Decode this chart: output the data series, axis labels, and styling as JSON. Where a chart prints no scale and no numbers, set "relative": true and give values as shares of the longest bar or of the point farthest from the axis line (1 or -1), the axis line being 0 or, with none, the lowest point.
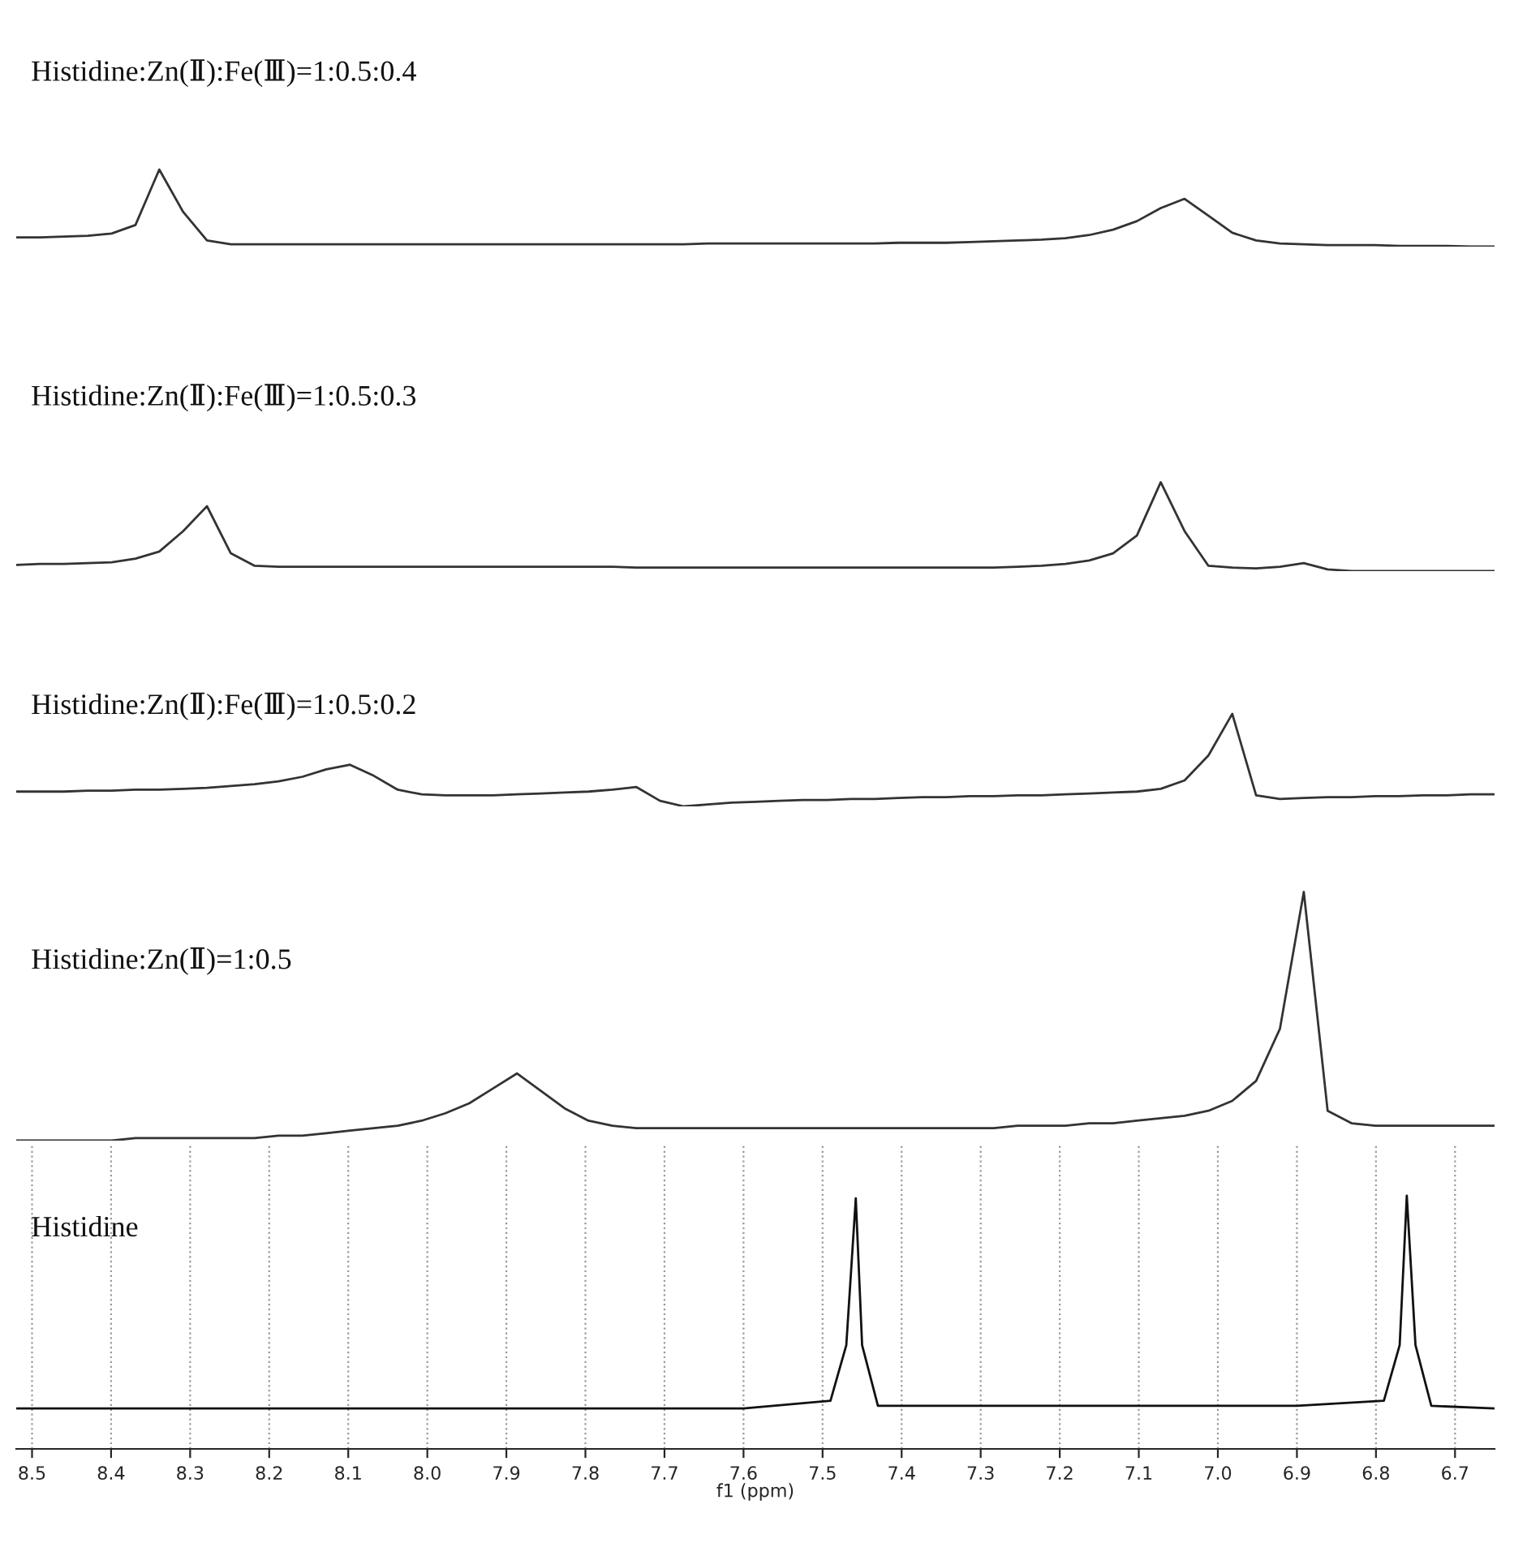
{
  "chart_data": [
    {
      "type": "line",
      "relative": true,
      "annotations": [
        "Histidine:Zn(Ⅱ):Fe(Ⅲ)=1:0.5:0.4"
      ],
      "tick_labels": false,
      "categories": [
        null,
        null,
        null,
        null,
        null,
        null,
        null,
        null,
        null,
        null,
        null,
        null,
        null,
        null,
        null,
        null,
        null,
        null,
        null,
        null,
        null,
        null,
        null,
        null,
        null,
        null,
        null,
        null,
        null,
        null,
        null,
        null,
        null,
        null,
        null,
        null,
        null,
        null,
        null,
        null,
        null,
        null,
        null,
        null,
        null,
        null,
        null,
        null,
        null,
        null,
        null,
        null,
        null,
        null,
        null,
        null,
        null,
        null,
        null,
        null,
        null,
        null,
        null
      ],
      "series": [
        {
          "color": "#333333",
          "values": [
            0.12,
            0.12,
            0.13,
            0.14,
            0.17,
            0.28,
            1.0,
            0.45,
            0.08,
            0.03,
            0.03,
            0.03,
            0.03,
            0.03,
            0.03,
            0.03,
            0.03,
            0.03,
            0.03,
            0.03,
            0.03,
            0.03,
            0.03,
            0.03,
            0.03,
            0.03,
            0.03,
            0.03,
            0.03,
            0.04,
            0.04,
            0.04,
            0.04,
            0.04,
            0.04,
            0.04,
            0.04,
            0.05,
            0.05,
            0.05,
            0.06,
            0.07,
            0.08,
            0.09,
            0.11,
            0.15,
            0.22,
            0.33,
            0.5,
            0.62,
            0.4,
            0.18,
            0.08,
            0.04,
            0.03,
            0.02,
            0.02,
            0.02,
            0.01,
            0.01,
            0.01,
            0.0,
            0.0
          ]
        }
      ]
    },
    {
      "type": "line",
      "relative": true,
      "annotations": [
        "Histidine:Zn(Ⅱ):Fe(Ⅲ)=1:0.5:0.3"
      ],
      "tick_labels": false,
      "categories": [
        null,
        null,
        null,
        null,
        null,
        null,
        null,
        null,
        null,
        null,
        null,
        null,
        null,
        null,
        null,
        null,
        null,
        null,
        null,
        null,
        null,
        null,
        null,
        null,
        null,
        null,
        null,
        null,
        null,
        null,
        null,
        null,
        null,
        null,
        null,
        null,
        null,
        null,
        null,
        null,
        null,
        null,
        null,
        null,
        null,
        null,
        null,
        null,
        null,
        null,
        null,
        null,
        null,
        null,
        null,
        null,
        null,
        null,
        null,
        null,
        null,
        null,
        null
      ],
      "series": [
        {
          "color": "#333333",
          "values": [
            0.07,
            0.08,
            0.08,
            0.09,
            0.1,
            0.14,
            0.22,
            0.45,
            0.73,
            0.2,
            0.06,
            0.05,
            0.05,
            0.05,
            0.05,
            0.05,
            0.05,
            0.05,
            0.05,
            0.05,
            0.05,
            0.05,
            0.05,
            0.05,
            0.05,
            0.05,
            0.04,
            0.04,
            0.04,
            0.04,
            0.04,
            0.04,
            0.04,
            0.04,
            0.04,
            0.04,
            0.04,
            0.04,
            0.04,
            0.04,
            0.04,
            0.04,
            0.05,
            0.06,
            0.08,
            0.12,
            0.2,
            0.4,
            1.0,
            0.45,
            0.06,
            0.04,
            0.03,
            0.05,
            0.09,
            0.02,
            0.0,
            0.0,
            0.0,
            0.0,
            0.0,
            0.0,
            0.0
          ]
        }
      ]
    },
    {
      "type": "line",
      "relative": true,
      "annotations": [
        "Histidine:Zn(Ⅱ):Fe(Ⅲ)=1:0.5:0.2"
      ],
      "tick_labels": false,
      "categories": [
        null,
        null,
        null,
        null,
        null,
        null,
        null,
        null,
        null,
        null,
        null,
        null,
        null,
        null,
        null,
        null,
        null,
        null,
        null,
        null,
        null,
        null,
        null,
        null,
        null,
        null,
        null,
        null,
        null,
        null,
        null,
        null,
        null,
        null,
        null,
        null,
        null,
        null,
        null,
        null,
        null,
        null,
        null,
        null,
        null,
        null,
        null,
        null,
        null,
        null,
        null,
        null,
        null,
        null,
        null,
        null,
        null,
        null,
        null,
        null,
        null,
        null,
        null
      ],
      "series": [
        {
          "color": "#333333",
          "values": [
            0.16,
            0.16,
            0.16,
            0.17,
            0.17,
            0.18,
            0.18,
            0.19,
            0.2,
            0.22,
            0.24,
            0.27,
            0.32,
            0.4,
            0.45,
            0.33,
            0.18,
            0.13,
            0.12,
            0.12,
            0.12,
            0.13,
            0.14,
            0.15,
            0.16,
            0.18,
            0.21,
            0.06,
            0.0,
            0.02,
            0.04,
            0.05,
            0.06,
            0.07,
            0.07,
            0.08,
            0.08,
            0.09,
            0.1,
            0.1,
            0.11,
            0.11,
            0.12,
            0.12,
            0.13,
            0.14,
            0.15,
            0.16,
            0.19,
            0.28,
            0.55,
            1.0,
            0.12,
            0.08,
            0.09,
            0.1,
            0.1,
            0.11,
            0.11,
            0.12,
            0.12,
            0.13,
            0.13
          ]
        }
      ]
    },
    {
      "type": "line",
      "relative": true,
      "annotations": [
        "Histidine:Zn(Ⅱ)=1:0.5"
      ],
      "tick_labels": false,
      "categories": [
        null,
        null,
        null,
        null,
        null,
        null,
        null,
        null,
        null,
        null,
        null,
        null,
        null,
        null,
        null,
        null,
        null,
        null,
        null,
        null,
        null,
        null,
        null,
        null,
        null,
        null,
        null,
        null,
        null,
        null,
        null,
        null,
        null,
        null,
        null,
        null,
        null,
        null,
        null,
        null,
        null,
        null,
        null,
        null,
        null,
        null,
        null,
        null,
        null,
        null,
        null,
        null,
        null,
        null,
        null,
        null,
        null,
        null,
        null,
        null,
        null,
        null,
        null
      ],
      "series": [
        {
          "color": "#333333",
          "values": [
            0.0,
            0.0,
            0.0,
            0.0,
            0.0,
            0.01,
            0.01,
            0.01,
            0.01,
            0.01,
            0.01,
            0.02,
            0.02,
            0.03,
            0.04,
            0.05,
            0.06,
            0.08,
            0.11,
            0.15,
            0.21,
            0.27,
            0.2,
            0.13,
            0.08,
            0.06,
            0.05,
            0.05,
            0.05,
            0.05,
            0.05,
            0.05,
            0.05,
            0.05,
            0.05,
            0.05,
            0.05,
            0.05,
            0.05,
            0.05,
            0.05,
            0.05,
            0.06,
            0.06,
            0.06,
            0.07,
            0.07,
            0.08,
            0.09,
            0.1,
            0.12,
            0.16,
            0.24,
            0.45,
            1.0,
            0.12,
            0.07,
            0.06,
            0.06,
            0.06,
            0.06,
            0.06,
            0.06
          ]
        }
      ]
    },
    {
      "type": "line",
      "relative": true,
      "annotations": [
        "Histidine"
      ],
      "xlim": [
        8.52,
        6.65
      ],
      "xlabel": "f1 (ppm)",
      "grid": "x",
      "tick_labels": "x",
      "xticks": [
        8.5,
        8.4,
        8.3,
        8.2,
        8.1,
        {
          "value": 8.0,
          "label": "8.0"
        },
        7.9,
        7.8,
        7.7,
        7.6,
        7.5,
        7.4,
        7.3,
        7.2,
        7.1,
        {
          "value": 7.0,
          "label": "7.0"
        },
        6.9,
        6.8,
        6.7
      ],
      "series": [
        {
          "color": "#111111",
          "x": [
            8.52,
            7.6,
            7.49,
            7.47,
            7.458,
            7.45,
            7.43,
            6.9,
            6.79,
            6.77,
            6.761,
            6.75,
            6.73,
            6.65
          ],
          "values": [
            0.16,
            0.16,
            0.19,
            0.41,
            0.99,
            0.41,
            0.17,
            0.17,
            0.19,
            0.41,
            1.0,
            0.41,
            0.17,
            0.16
          ]
        }
      ]
    }
  ]
}
